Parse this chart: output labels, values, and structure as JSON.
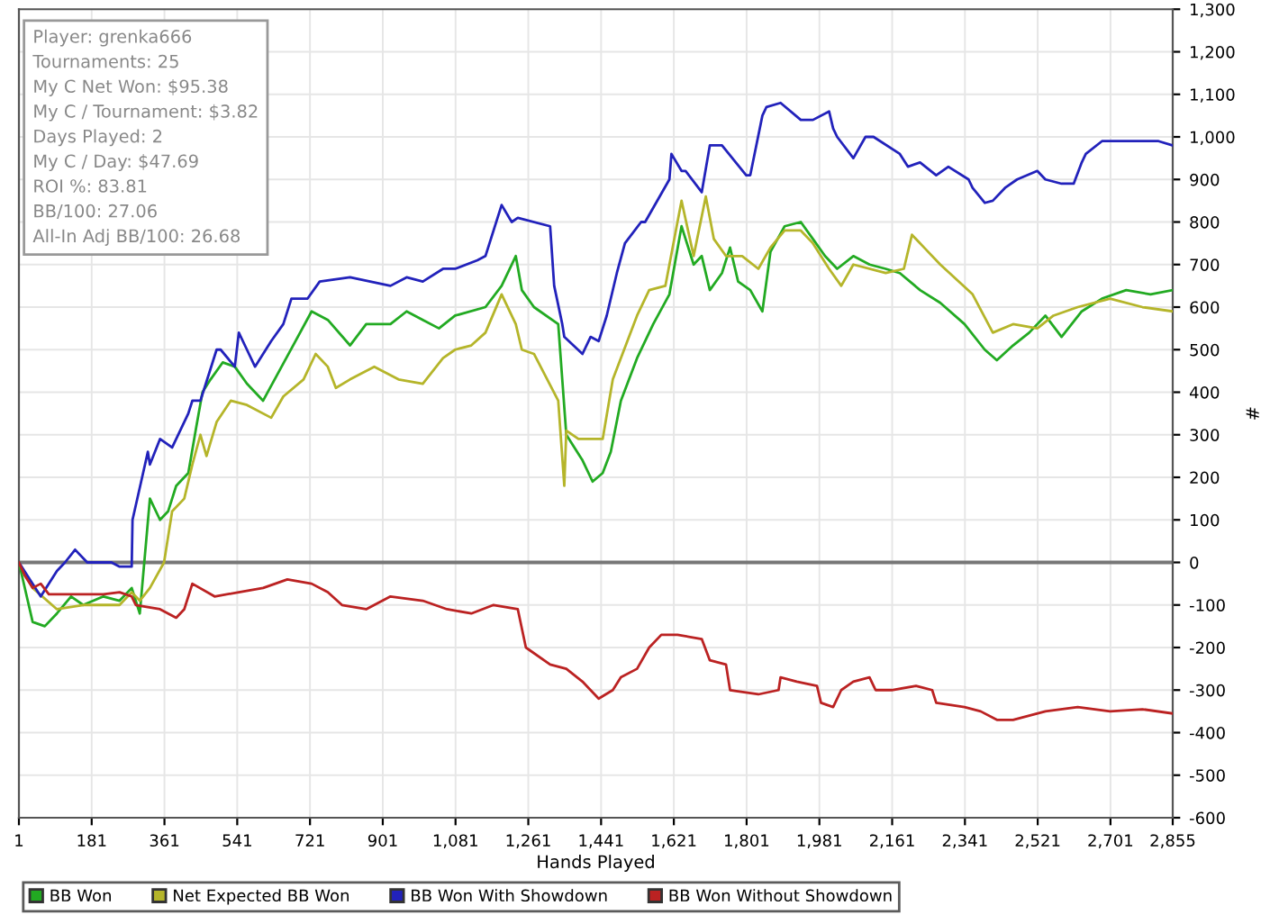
{
  "chart_data": {
    "type": "line",
    "xlabel": "Hands Played",
    "ylabel": "#",
    "xlim": [
      1,
      2855
    ],
    "xticks": [
      1,
      181,
      361,
      541,
      721,
      901,
      {
        "value": 1081,
        "label": "1,081"
      },
      {
        "value": 1261,
        "label": "1,261"
      },
      {
        "value": 1441,
        "label": "1,441"
      },
      {
        "value": 1621,
        "label": "1,621"
      },
      {
        "value": 1801,
        "label": "1,801"
      },
      {
        "value": 1981,
        "label": "1,981"
      },
      {
        "value": 2161,
        "label": "2,161"
      },
      {
        "value": 2341,
        "label": "2,341"
      },
      {
        "value": 2521,
        "label": "2,521"
      },
      {
        "value": 2701,
        "label": "2,701"
      },
      {
        "value": 2855,
        "label": "2,855"
      }
    ],
    "ylim": [
      -600,
      1300
    ],
    "yticks": [
      -600,
      -500,
      -400,
      -300,
      -200,
      -100,
      0,
      100,
      200,
      300,
      400,
      500,
      600,
      700,
      800,
      900,
      {
        "value": 1000,
        "label": "1,000"
      },
      {
        "value": 1100,
        "label": "1,100"
      },
      {
        "value": 1200,
        "label": "1,200"
      },
      {
        "value": 1300,
        "label": "1,300"
      }
    ],
    "grid": true,
    "legend": "bottom",
    "marker": "none",
    "line_style": "solid",
    "ref_lines": [
      {
        "axis": "y",
        "value": 0,
        "color": "#777777"
      }
    ],
    "annotations": [
      "Player: grenka666",
      "Tournaments: 25",
      "My C Net Won: $95.38",
      "My C / Tournament: $3.82",
      "Days Played: 2",
      "My C / Day: $47.69",
      "ROI %: 83.81",
      "BB/100: 27.06",
      "All-In Adj BB/100: 26.68"
    ],
    "series": [
      {
        "name": "BB Won",
        "color": "#22aa22",
        "x": [
          1,
          35,
          65,
          95,
          130,
          160,
          210,
          250,
          280,
          300,
          325,
          350,
          370,
          390,
          420,
          440,
          455,
          475,
          505,
          535,
          565,
          605,
          645,
          685,
          725,
          765,
          820,
          860,
          920,
          960,
          1000,
          1040,
          1080,
          1155,
          1195,
          1230,
          1245,
          1275,
          1335,
          1355,
          1395,
          1420,
          1445,
          1465,
          1490,
          1530,
          1570,
          1610,
          1640,
          1670,
          1690,
          1710,
          1740,
          1760,
          1780,
          1810,
          1840,
          1860,
          1895,
          1935,
          1965,
          1995,
          2025,
          2065,
          2105,
          2145,
          2180,
          2230,
          2280,
          2340,
          2390,
          2420,
          2460,
          2500,
          2540,
          2580,
          2630,
          2680,
          2740,
          2800,
          2855
        ],
        "values": [
          0,
          -140,
          -150,
          -120,
          -80,
          -100,
          -80,
          -90,
          -60,
          -120,
          150,
          100,
          120,
          180,
          210,
          320,
          400,
          430,
          470,
          460,
          420,
          380,
          450,
          520,
          590,
          570,
          510,
          560,
          560,
          590,
          570,
          550,
          580,
          600,
          650,
          720,
          640,
          600,
          560,
          300,
          240,
          190,
          210,
          260,
          380,
          480,
          560,
          630,
          790,
          700,
          720,
          640,
          680,
          740,
          660,
          640,
          590,
          730,
          790,
          800,
          760,
          720,
          690,
          720,
          700,
          690,
          680,
          640,
          610,
          560,
          500,
          475,
          510,
          540,
          580,
          530,
          590,
          620,
          640,
          630,
          640
        ]
      },
      {
        "name": "Net Expected BB Won",
        "color": "#b5b52a",
        "x": [
          1,
          35,
          95,
          160,
          250,
          280,
          300,
          325,
          360,
          380,
          410,
          430,
          450,
          465,
          490,
          525,
          565,
          625,
          655,
          705,
          735,
          765,
          785,
          820,
          880,
          940,
          1000,
          1050,
          1080,
          1120,
          1155,
          1195,
          1230,
          1245,
          1275,
          1335,
          1350,
          1355,
          1385,
          1445,
          1470,
          1530,
          1560,
          1600,
          1640,
          1670,
          1700,
          1720,
          1750,
          1790,
          1830,
          1860,
          1895,
          1935,
          1965,
          2005,
          2035,
          2065,
          2145,
          2190,
          2210,
          2240,
          2280,
          2360,
          2410,
          2460,
          2520,
          2560,
          2620,
          2700,
          2780,
          2855
        ],
        "values": [
          0,
          -60,
          -110,
          -100,
          -100,
          -70,
          -90,
          -60,
          0,
          120,
          150,
          230,
          300,
          250,
          330,
          380,
          370,
          340,
          390,
          430,
          490,
          460,
          410,
          430,
          460,
          430,
          420,
          480,
          500,
          510,
          540,
          630,
          560,
          500,
          490,
          380,
          180,
          310,
          290,
          290,
          430,
          580,
          640,
          650,
          850,
          720,
          860,
          760,
          720,
          720,
          690,
          740,
          780,
          780,
          750,
          690,
          650,
          700,
          680,
          690,
          770,
          740,
          700,
          630,
          540,
          560,
          550,
          580,
          600,
          620,
          600,
          590
        ]
      },
      {
        "name": "BB Won With Showdown",
        "color": "#2222bb",
        "x": [
          1,
          55,
          95,
          115,
          140,
          170,
          230,
          250,
          280,
          282,
          320,
          325,
          350,
          380,
          420,
          430,
          450,
          490,
          500,
          535,
          545,
          565,
          585,
          625,
          655,
          675,
          715,
          745,
          820,
          920,
          960,
          1000,
          1050,
          1080,
          1135,
          1155,
          1195,
          1220,
          1235,
          1315,
          1325,
          1345,
          1350,
          1395,
          1415,
          1435,
          1455,
          1480,
          1500,
          1540,
          1550,
          1610,
          1615,
          1640,
          1650,
          1690,
          1710,
          1740,
          1800,
          1810,
          1840,
          1850,
          1885,
          1935,
          1965,
          2005,
          2015,
          2025,
          2065,
          2095,
          2115,
          2180,
          2200,
          2230,
          2270,
          2300,
          2350,
          2360,
          2390,
          2410,
          2440,
          2470,
          2520,
          2540,
          2580,
          2610,
          2630,
          2640,
          2680,
          2730,
          2820,
          2855
        ],
        "values": [
          0,
          -80,
          -20,
          0,
          30,
          0,
          0,
          -10,
          -10,
          100,
          260,
          230,
          290,
          270,
          350,
          380,
          380,
          500,
          500,
          460,
          540,
          500,
          460,
          520,
          560,
          620,
          620,
          660,
          670,
          650,
          670,
          660,
          690,
          690,
          710,
          720,
          840,
          800,
          810,
          790,
          650,
          560,
          530,
          490,
          530,
          520,
          580,
          680,
          750,
          800,
          800,
          900,
          960,
          920,
          920,
          870,
          980,
          980,
          910,
          910,
          1050,
          1070,
          1080,
          1040,
          1040,
          1060,
          1020,
          1000,
          950,
          1000,
          1000,
          960,
          930,
          940,
          910,
          930,
          900,
          880,
          845,
          850,
          880,
          900,
          920,
          900,
          890,
          890,
          940,
          960,
          990,
          990,
          990,
          980
        ]
      },
      {
        "name": "BB Won Without Showdown",
        "color": "#bb2222",
        "x": [
          1,
          15,
          35,
          55,
          75,
          130,
          210,
          250,
          280,
          290,
          350,
          390,
          410,
          430,
          485,
          545,
          605,
          665,
          725,
          765,
          800,
          860,
          920,
          1000,
          1060,
          1120,
          1175,
          1235,
          1255,
          1315,
          1355,
          1395,
          1435,
          1470,
          1490,
          1530,
          1560,
          1590,
          1630,
          1690,
          1710,
          1750,
          1760,
          1830,
          1880,
          1885,
          1925,
          1975,
          1985,
          2015,
          2035,
          2065,
          2105,
          2120,
          2160,
          2220,
          2260,
          2270,
          2340,
          2380,
          2420,
          2460,
          2540,
          2620,
          2700,
          2780,
          2855
        ],
        "values": [
          0,
          -30,
          -60,
          -50,
          -75,
          -75,
          -75,
          -70,
          -80,
          -100,
          -110,
          -130,
          -110,
          -50,
          -80,
          -70,
          -60,
          -40,
          -50,
          -70,
          -100,
          -110,
          -80,
          -90,
          -110,
          -120,
          -100,
          -110,
          -200,
          -240,
          -250,
          -280,
          -320,
          -300,
          -270,
          -250,
          -200,
          -170,
          -170,
          -180,
          -230,
          -240,
          -300,
          -310,
          -300,
          -270,
          -280,
          -290,
          -330,
          -340,
          -300,
          -280,
          -270,
          -300,
          -300,
          -290,
          -300,
          -330,
          -340,
          -350,
          -370,
          -370,
          -350,
          -340,
          -350,
          -345,
          -355
        ]
      }
    ]
  }
}
